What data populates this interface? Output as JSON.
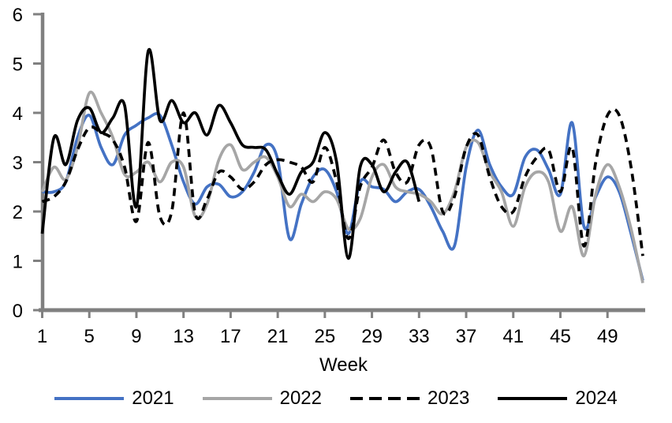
{
  "chart_data": {
    "type": "line",
    "title": "",
    "xlabel": "Week",
    "ylabel": "",
    "xlim": [
      1,
      52
    ],
    "ylim": [
      0,
      6
    ],
    "x_ticks": [
      1,
      5,
      9,
      13,
      17,
      21,
      25,
      29,
      33,
      37,
      41,
      45,
      49
    ],
    "y_ticks": [
      0,
      1,
      2,
      3,
      4,
      5,
      6
    ],
    "grid": false,
    "legend_position": "bottom",
    "axis_color": "#808080",
    "text_color": "#000000",
    "background_color": "#ffffff",
    "x_unit": "week",
    "series": [
      {
        "name": "2021",
        "color": "#4472C4",
        "style": "solid",
        "values": [
          2.4,
          2.4,
          2.6,
          3.5,
          3.95,
          3.3,
          2.95,
          3.55,
          3.75,
          3.9,
          3.95,
          3.35,
          2.6,
          2.15,
          2.5,
          2.55,
          2.3,
          2.4,
          2.8,
          3.35,
          3.05,
          1.45,
          2.15,
          2.7,
          2.85,
          2.4,
          1.55,
          2.6,
          2.5,
          2.45,
          2.2,
          2.4,
          2.45,
          2.1,
          1.6,
          1.3,
          2.9,
          3.65,
          2.95,
          2.5,
          2.35,
          3.1,
          3.25,
          2.85,
          2.35,
          3.8,
          1.7,
          2.3,
          2.7,
          2.4,
          1.55,
          0.6
        ]
      },
      {
        "name": "2022",
        "color": "#A6A6A6",
        "style": "solid",
        "values": [
          2.4,
          2.9,
          2.65,
          3.3,
          4.4,
          4.0,
          3.5,
          2.75,
          2.8,
          3.0,
          2.6,
          3.0,
          2.9,
          1.9,
          2.15,
          3.05,
          3.35,
          2.85,
          3.0,
          3.1,
          2.7,
          2.1,
          2.35,
          2.2,
          2.4,
          2.25,
          1.65,
          1.85,
          2.7,
          2.95,
          2.5,
          2.4,
          2.35,
          2.2,
          1.95,
          2.4,
          3.3,
          3.4,
          2.8,
          2.4,
          1.7,
          2.5,
          2.8,
          2.6,
          1.6,
          2.1,
          1.1,
          2.35,
          2.95,
          2.5,
          1.65,
          0.55
        ]
      },
      {
        "name": "2023",
        "color": "#000000",
        "style": "dashed",
        "values": [
          2.2,
          2.3,
          2.6,
          3.25,
          3.7,
          3.6,
          3.45,
          2.9,
          1.8,
          3.4,
          1.9,
          2.0,
          4.0,
          1.95,
          2.25,
          2.8,
          2.7,
          2.45,
          2.6,
          2.95,
          3.05,
          3.0,
          2.9,
          2.6,
          3.3,
          2.6,
          1.45,
          2.5,
          2.9,
          3.45,
          2.8,
          2.6,
          3.35,
          3.3,
          2.0,
          2.3,
          3.3,
          3.55,
          2.7,
          2.1,
          2.0,
          2.7,
          3.1,
          3.25,
          2.4,
          3.3,
          1.3,
          3.0,
          3.95,
          3.95,
          2.9,
          1.1
        ]
      },
      {
        "name": "2024",
        "color": "#000000",
        "style": "solid",
        "values": [
          1.55,
          3.5,
          2.95,
          3.85,
          4.1,
          3.6,
          3.9,
          4.15,
          2.1,
          5.25,
          3.85,
          4.25,
          3.8,
          4.0,
          3.55,
          4.15,
          3.8,
          3.35,
          3.3,
          3.25,
          2.75,
          2.35,
          2.8,
          3.0,
          3.6,
          3.0,
          1.05,
          2.9,
          2.95,
          2.4,
          2.8,
          3.0,
          2.2
        ]
      }
    ]
  }
}
